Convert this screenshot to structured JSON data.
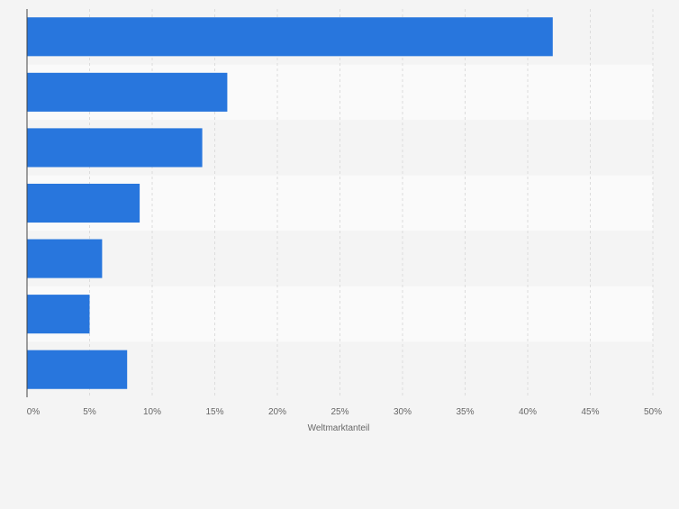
{
  "chart_data": {
    "type": "bar",
    "orientation": "horizontal",
    "categories": [
      "",
      "",
      "",
      "",
      "",
      "",
      ""
    ],
    "values": [
      42,
      16,
      14,
      9,
      6,
      5,
      8
    ],
    "value_unit": "%",
    "xlabel": "Weltmarktanteil",
    "ylabel": "",
    "xlim": [
      0,
      50
    ],
    "xticks": [
      {
        "value": 0,
        "label": "0%"
      },
      {
        "value": 5,
        "label": "5%"
      },
      {
        "value": 10,
        "label": "10%"
      },
      {
        "value": 15,
        "label": "15%"
      },
      {
        "value": 20,
        "label": "20%"
      },
      {
        "value": 25,
        "label": "25%"
      },
      {
        "value": 30,
        "label": "30%"
      },
      {
        "value": 35,
        "label": "35%"
      },
      {
        "value": 40,
        "label": "40%"
      },
      {
        "value": 45,
        "label": "45%"
      },
      {
        "value": 50,
        "label": "50%"
      }
    ],
    "grid": true,
    "legend": "none",
    "colors": {
      "bar": "#2876dd",
      "band_light": "#fafafa",
      "band_dark": "#f4f4f4",
      "grid": "#dcdcdc",
      "axis": "#444444",
      "tick_text": "#666666",
      "page_background": "#f4f4f4"
    }
  }
}
